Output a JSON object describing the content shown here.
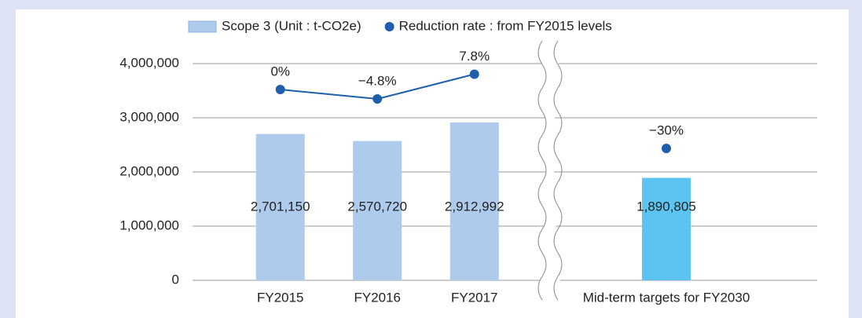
{
  "chart_data": {
    "type": "bar",
    "categories": [
      "FY2015",
      "FY2016",
      "FY2017",
      "Mid-term targets for FY2030"
    ],
    "series": [
      {
        "name": "Scope 3 (Unit : t-CO2e)",
        "type": "bar",
        "colors": [
          "#aecbed",
          "#aecbed",
          "#aecbed",
          "#5cc4f0"
        ],
        "values": [
          2701150,
          2570720,
          2912992,
          1890805
        ],
        "value_labels": [
          "2,701,150",
          "2,570,720",
          "2,912,992",
          "1,890,805"
        ]
      },
      {
        "name": "Reduction rate : from FY2015 levels",
        "type": "line",
        "axis": "y2",
        "color": "#1f5eab",
        "values": [
          0,
          -4.8,
          7.8,
          -30
        ],
        "value_labels": [
          "0%",
          "−4.8%",
          "7.8%",
          "−30%"
        ]
      }
    ],
    "ylim": [
      0,
      4000000
    ],
    "yticks": [
      0,
      {
        "value": 1000000,
        "label": "1,000,000"
      },
      {
        "value": 2000000,
        "label": "2,000,000"
      },
      {
        "value": 3000000,
        "label": "3,000,000"
      },
      {
        "value": 4000000,
        "label": "4,000,000"
      }
    ],
    "y2lim": [
      -97.2,
      13.2
    ],
    "grid": true,
    "axis_break_after": 2
  }
}
